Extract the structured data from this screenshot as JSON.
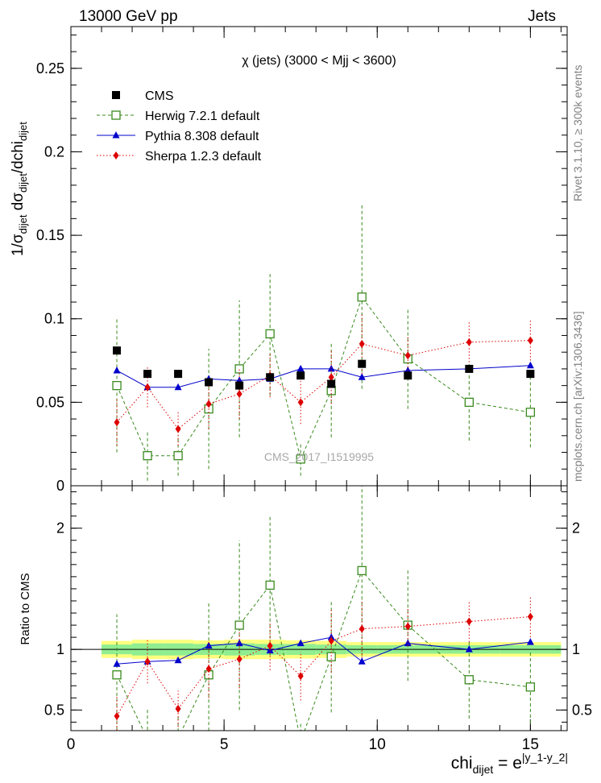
{
  "header": {
    "left": "13000 GeV pp",
    "right": "Jets"
  },
  "side_text": {
    "rivet": "Rivet 3.1.10, ≥ 300k events",
    "mcplots": "mcplots.cern.ch [arXiv:1306.3436]"
  },
  "watermark": "CMS_2017_I1519995",
  "chart_data": {
    "type": "line",
    "title": "χ (jets) (3000 < Mjj < 3600)",
    "xlim": [
      0,
      16.2
    ],
    "main_panel": {
      "ylabel": "1/σdijet dσdijet/dchidijet",
      "ylim": [
        0,
        0.275
      ],
      "yticks": [
        "0",
        "0.05",
        "0.1",
        "0.15",
        "0.2",
        "0.25"
      ]
    },
    "ratio_panel": {
      "ylabel": "Ratio to CMS",
      "ylim": [
        0.33,
        2.35
      ],
      "yticks": [
        "0.5",
        "1",
        "2"
      ]
    },
    "xlabel": "chidijet = e|y_1-y_2|",
    "xticks": [
      "0",
      "5",
      "10",
      "15"
    ],
    "legend": {
      "position": "top-left",
      "entries": [
        {
          "label": "CMS",
          "color": "#000000",
          "marker": "square"
        },
        {
          "label": "Herwig 7.2.1 default",
          "color": "#3a8a1e",
          "marker": "open-square"
        },
        {
          "label": "Pythia 8.308 default",
          "color": "#0000cc",
          "marker": "triangle"
        },
        {
          "label": "Sherpa 1.2.3 default",
          "color": "#dd0000",
          "marker": "diamond"
        }
      ]
    },
    "bins": [
      [
        1,
        2
      ],
      [
        2,
        3
      ],
      [
        3,
        4
      ],
      [
        4,
        5
      ],
      [
        5,
        6
      ],
      [
        6,
        7
      ],
      [
        7,
        8
      ],
      [
        8,
        9
      ],
      [
        9,
        10
      ],
      [
        10,
        12
      ],
      [
        12,
        14
      ],
      [
        14,
        16
      ]
    ],
    "x": [
      1.5,
      2.5,
      3.5,
      4.5,
      5.5,
      6.5,
      7.5,
      8.5,
      9.5,
      11,
      13,
      15
    ],
    "series": [
      {
        "name": "CMS",
        "color": "#000000",
        "values": [
          0.081,
          0.067,
          0.067,
          0.062,
          0.06,
          0.065,
          0.066,
          0.061,
          0.073,
          0.066,
          0.07,
          0.067
        ],
        "errors": [
          0.001,
          0.001,
          0.001,
          0.001,
          0.001,
          0.001,
          0.001,
          0.001,
          0.001,
          0.001,
          0.001,
          0.001
        ],
        "ratio": [
          1,
          1,
          1,
          1,
          1,
          1,
          1,
          1,
          1,
          1,
          1,
          1
        ]
      },
      {
        "name": "Herwig 7.2.1 default",
        "color": "#3a8a1e",
        "values": [
          0.06,
          0.018,
          0.018,
          0.046,
          0.07,
          0.091,
          0.016,
          0.057,
          0.113,
          0.076,
          0.05,
          0.044
        ],
        "errors": [
          0.04,
          0.015,
          0.012,
          0.036,
          0.041,
          0.037,
          0.01,
          0.028,
          0.055,
          0.03,
          0.023,
          0.021
        ],
        "ratio": [
          0.79,
          0.26,
          0.27,
          0.79,
          1.2,
          1.53,
          0.24,
          0.94,
          1.65,
          1.2,
          0.75,
          0.69
        ],
        "ratio_errors": [
          0.5,
          0.25,
          0.18,
          0.6,
          0.7,
          0.58,
          0.16,
          0.46,
          0.75,
          0.46,
          0.32,
          0.3
        ]
      },
      {
        "name": "Pythia 8.308 default",
        "color": "#0000cc",
        "values": [
          0.069,
          0.059,
          0.059,
          0.064,
          0.063,
          0.064,
          0.07,
          0.07,
          0.065,
          0.069,
          0.07,
          0.072
        ],
        "errors": [
          0.0012,
          0.0012,
          0.0012,
          0.0012,
          0.0012,
          0.0012,
          0.0012,
          0.0012,
          0.0012,
          0.0012,
          0.0012,
          0.0012
        ],
        "ratio": [
          0.88,
          0.9,
          0.91,
          1.03,
          1.05,
          0.99,
          1.05,
          1.1,
          0.9,
          1.05,
          1.0,
          1.06
        ],
        "ratio_errors": [
          0.02,
          0.02,
          0.02,
          0.02,
          0.02,
          0.02,
          0.02,
          0.02,
          0.02,
          0.02,
          0.02,
          0.02
        ]
      },
      {
        "name": "Sherpa 1.2.3 default",
        "color": "#dd0000",
        "values": [
          0.038,
          0.059,
          0.034,
          0.049,
          0.055,
          0.066,
          0.05,
          0.065,
          0.085,
          0.078,
          0.086,
          0.087
        ],
        "errors": [
          0.014,
          0.012,
          0.01,
          0.015,
          0.015,
          0.013,
          0.013,
          0.016,
          0.018,
          0.011,
          0.012,
          0.012
        ],
        "ratio": [
          0.45,
          0.9,
          0.51,
          0.84,
          0.92,
          1.03,
          0.78,
          1.07,
          1.17,
          1.19,
          1.23,
          1.27
        ],
        "ratio_errors": [
          0.17,
          0.18,
          0.15,
          0.24,
          0.24,
          0.2,
          0.2,
          0.26,
          0.24,
          0.16,
          0.17,
          0.17
        ]
      }
    ],
    "ratio_bands": {
      "inner_color": "#90ee90",
      "outer_color": "#ffff7f",
      "inner_halfwidth": [
        0.04,
        0.05,
        0.05,
        0.045,
        0.05,
        0.045,
        0.045,
        0.04,
        0.035,
        0.035,
        0.035,
        0.035
      ],
      "outer_halfwidth": [
        0.07,
        0.08,
        0.08,
        0.075,
        0.08,
        0.08,
        0.075,
        0.07,
        0.06,
        0.06,
        0.06,
        0.06
      ]
    }
  }
}
